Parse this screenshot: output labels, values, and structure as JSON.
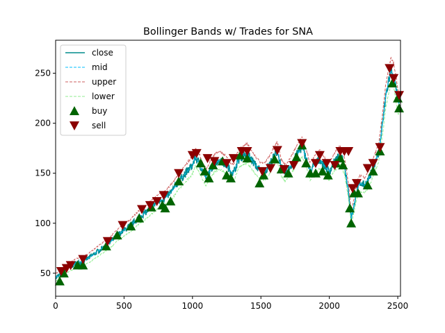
{
  "chart_data": {
    "type": "line",
    "title": "Bollinger Bands w/ Trades for SNA",
    "xlabel": "",
    "ylabel": "",
    "xlim": [
      0,
      2520
    ],
    "ylim": [
      27,
      283
    ],
    "x_ticks": [
      0,
      500,
      1000,
      1500,
      2000,
      2500
    ],
    "y_ticks": [
      50,
      100,
      150,
      200,
      250
    ],
    "grid": false,
    "legend_position": "top-left",
    "legend": [
      "close",
      "mid",
      "upper",
      "lower",
      "buy",
      "sell"
    ],
    "colors": {
      "close": "#008b8b",
      "mid": "#00bfff",
      "upper": "#cd5c5c",
      "lower": "#90ee90",
      "buy": "#006400",
      "sell": "#8b0000"
    },
    "close": [
      [
        0,
        46
      ],
      [
        30,
        48
      ],
      [
        60,
        52
      ],
      [
        100,
        56
      ],
      [
        150,
        60
      ],
      [
        200,
        62
      ],
      [
        250,
        66
      ],
      [
        300,
        71
      ],
      [
        350,
        76
      ],
      [
        400,
        81
      ],
      [
        450,
        88
      ],
      [
        500,
        93
      ],
      [
        550,
        98
      ],
      [
        600,
        105
      ],
      [
        650,
        110
      ],
      [
        700,
        116
      ],
      [
        750,
        122
      ],
      [
        800,
        125
      ],
      [
        850,
        132
      ],
      [
        900,
        142
      ],
      [
        950,
        150
      ],
      [
        1000,
        158
      ],
      [
        1020,
        166
      ],
      [
        1050,
        160
      ],
      [
        1080,
        150
      ],
      [
        1100,
        146
      ],
      [
        1130,
        153
      ],
      [
        1160,
        160
      ],
      [
        1200,
        163
      ],
      [
        1250,
        158
      ],
      [
        1280,
        152
      ],
      [
        1300,
        150
      ],
      [
        1330,
        162
      ],
      [
        1360,
        167
      ],
      [
        1400,
        170
      ],
      [
        1430,
        164
      ],
      [
        1460,
        158
      ],
      [
        1500,
        152
      ],
      [
        1530,
        152
      ],
      [
        1560,
        158
      ],
      [
        1600,
        168
      ],
      [
        1620,
        172
      ],
      [
        1650,
        155
      ],
      [
        1680,
        150
      ],
      [
        1720,
        158
      ],
      [
        1760,
        168
      ],
      [
        1800,
        176
      ],
      [
        1830,
        165
      ],
      [
        1860,
        152
      ],
      [
        1900,
        160
      ],
      [
        1930,
        164
      ],
      [
        1960,
        158
      ],
      [
        2000,
        152
      ],
      [
        2040,
        162
      ],
      [
        2080,
        168
      ],
      [
        2110,
        158
      ],
      [
        2140,
        132
      ],
      [
        2160,
        105
      ],
      [
        2180,
        118
      ],
      [
        2200,
        132
      ],
      [
        2220,
        140
      ],
      [
        2260,
        138
      ],
      [
        2300,
        148
      ],
      [
        2330,
        160
      ],
      [
        2360,
        170
      ],
      [
        2390,
        200
      ],
      [
        2410,
        225
      ],
      [
        2430,
        240
      ],
      [
        2450,
        252
      ],
      [
        2470,
        248
      ],
      [
        2490,
        232
      ],
      [
        2500,
        222
      ],
      [
        2515,
        218
      ]
    ],
    "buy": [
      [
        30,
        42
      ],
      [
        60,
        50
      ],
      [
        160,
        58
      ],
      [
        200,
        58
      ],
      [
        370,
        77
      ],
      [
        450,
        88
      ],
      [
        550,
        97
      ],
      [
        610,
        105
      ],
      [
        700,
        116
      ],
      [
        780,
        118
      ],
      [
        800,
        115
      ],
      [
        840,
        122
      ],
      [
        900,
        142
      ],
      [
        1060,
        160
      ],
      [
        1090,
        152
      ],
      [
        1120,
        145
      ],
      [
        1150,
        158
      ],
      [
        1220,
        162
      ],
      [
        1250,
        148
      ],
      [
        1280,
        145
      ],
      [
        1350,
        168
      ],
      [
        1400,
        165
      ],
      [
        1490,
        140
      ],
      [
        1520,
        148
      ],
      [
        1600,
        164
      ],
      [
        1650,
        154
      ],
      [
        1700,
        150
      ],
      [
        1760,
        166
      ],
      [
        1800,
        178
      ],
      [
        1830,
        160
      ],
      [
        1860,
        150
      ],
      [
        1900,
        150
      ],
      [
        1950,
        152
      ],
      [
        1990,
        148
      ],
      [
        2050,
        160
      ],
      [
        2080,
        165
      ],
      [
        2100,
        158
      ],
      [
        2150,
        115
      ],
      [
        2160,
        100
      ],
      [
        2180,
        130
      ],
      [
        2210,
        130
      ],
      [
        2280,
        138
      ],
      [
        2320,
        152
      ],
      [
        2370,
        172
      ],
      [
        2460,
        240
      ],
      [
        2500,
        225
      ],
      [
        2510,
        215
      ]
    ],
    "sell": [
      [
        40,
        52
      ],
      [
        80,
        55
      ],
      [
        110,
        58
      ],
      [
        200,
        64
      ],
      [
        380,
        82
      ],
      [
        490,
        98
      ],
      [
        630,
        114
      ],
      [
        690,
        118
      ],
      [
        740,
        122
      ],
      [
        790,
        128
      ],
      [
        900,
        150
      ],
      [
        1000,
        168
      ],
      [
        1030,
        170
      ],
      [
        1110,
        165
      ],
      [
        1160,
        162
      ],
      [
        1250,
        160
      ],
      [
        1300,
        165
      ],
      [
        1360,
        172
      ],
      [
        1400,
        172
      ],
      [
        1510,
        152
      ],
      [
        1570,
        155
      ],
      [
        1620,
        173
      ],
      [
        1670,
        154
      ],
      [
        1740,
        158
      ],
      [
        1800,
        180
      ],
      [
        1900,
        160
      ],
      [
        1930,
        168
      ],
      [
        1980,
        160
      ],
      [
        2040,
        158
      ],
      [
        2080,
        172
      ],
      [
        2110,
        172
      ],
      [
        2140,
        172
      ],
      [
        2170,
        135
      ],
      [
        2200,
        140
      ],
      [
        2280,
        155
      ],
      [
        2320,
        160
      ],
      [
        2370,
        176
      ],
      [
        2440,
        255
      ],
      [
        2470,
        245
      ],
      [
        2510,
        228
      ]
    ]
  }
}
